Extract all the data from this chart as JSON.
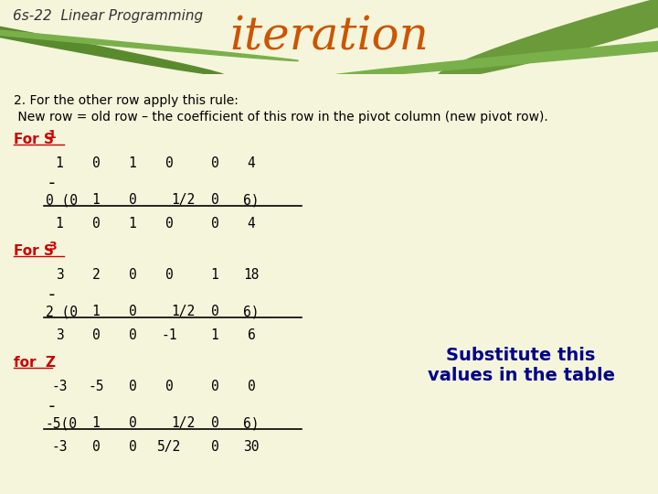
{
  "title": "iteration",
  "subtitle": "6s-22  Linear Programming",
  "bg_color": "#f5f5dc",
  "header_bg": "#8db86e",
  "title_color": "#cc5500",
  "title_fontsize": 36,
  "subtitle_fontsize": 11,
  "text_color": "#000000",
  "red_color": "#cc0000",
  "blue_color": "#00008b",
  "line1": "2. For the other row apply this rule:",
  "line2": " New row = old row – the coefficient of this row in the pivot column (new pivot row).",
  "for_z": "for  Z",
  "substitute_text": "Substitute this\nvalues in the table",
  "cols": [
    65,
    105,
    145,
    185,
    235,
    275,
    315
  ],
  "xcols": [
    50,
    100,
    140,
    180,
    228,
    268,
    308
  ]
}
